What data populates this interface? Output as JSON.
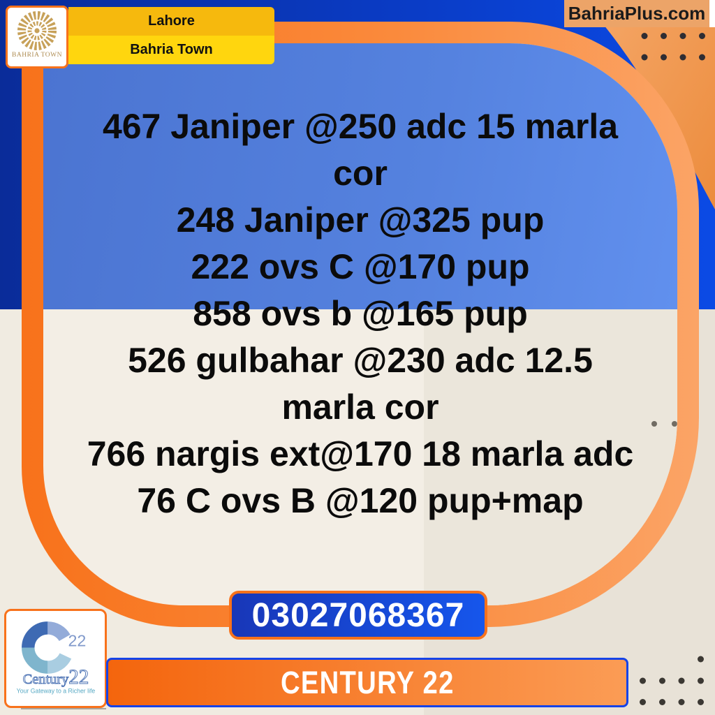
{
  "header": {
    "bahria_logo_label": "BAHRIA TOWN",
    "location_badge": "Lahore",
    "town_badge": "Bahria Town",
    "website": "BahriaPlus.com"
  },
  "listings": {
    "items": [
      "467 Janiper @250 adc 15 marla cor",
      "248 Janiper @325 pup",
      "222 ovs C @170 pup",
      "858 ovs b @165 pup",
      "526 gulbahar @230 adc 12.5 marla cor",
      "766 nargis ext@170 18 marla adc",
      "76 C ovs B @120 pup+map"
    ],
    "display_lines": [
      "467 Janiper @250 adc 15 marla",
      "cor",
      "248 Janiper @325 pup",
      "222 ovs C @170 pup",
      "858 ovs b @165 pup",
      "526 gulbahar @230 adc 12.5",
      "marla cor",
      "766 nargis ext@170 18 marla adc",
      "76 C ovs B @120 pup+map"
    ]
  },
  "contact": {
    "phone": "03027068367"
  },
  "agency": {
    "banner_label": "CENTURY 22",
    "logo_word": "Century",
    "logo_number": "22",
    "logo_super_number": "22",
    "tagline": "Your Gateway to a Richer life"
  },
  "colors": {
    "navy": "#0A2C99",
    "bright_blue": "#0B4AE5",
    "card_border_orange_dark": "#F8721B",
    "card_border_orange_light": "#FBA466",
    "interior_blue": "#4B74D1",
    "cream_left": "#F0EBE1",
    "cream_right": "#E8E2D7",
    "yellow_top": "#F6B90D",
    "yellow_bottom": "#FFD60E",
    "phone_button_blue": "#1656EC",
    "banner_border_blue": "#1543E8",
    "gold": "#C7A159"
  }
}
